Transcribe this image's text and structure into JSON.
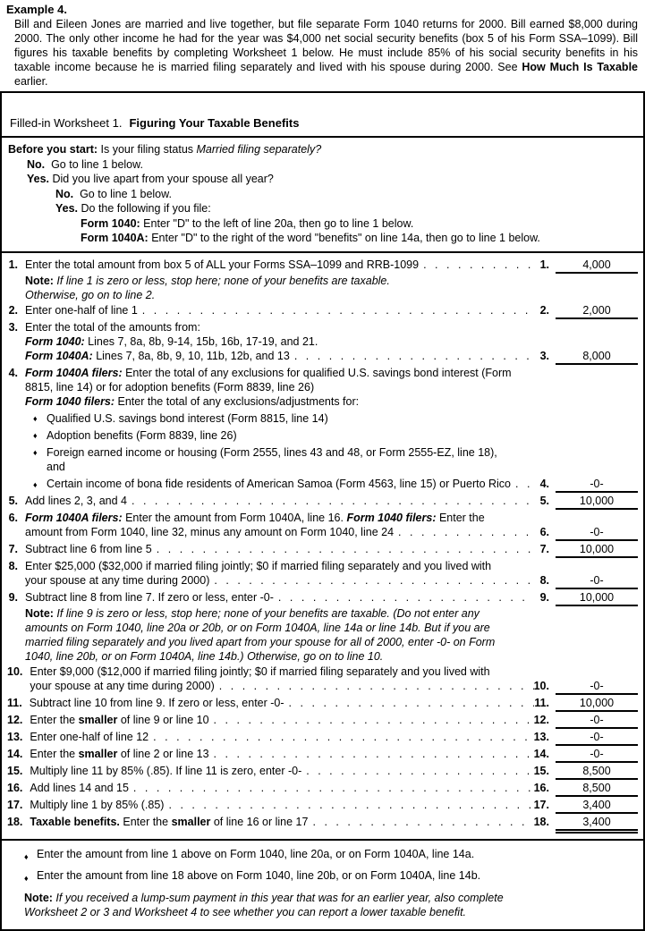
{
  "glyphs": {
    "bullet": "♦",
    "leader_unit": "."
  },
  "example": {
    "heading": "Example 4.",
    "body": [
      {
        "t": "Bill and Eileen Jones are married and live together, but file separate Form 1040 returns for 2000. Bill earned $8,000 during 2000. The only other income he had for the year was $4,000 net social security benefits (box 5 of his Form SSA–1099). Bill figures his taxable benefits by completing Worksheet 1 below. He must include 85% of his social security benefits in his taxable income because he is married filing separately and lived with his spouse during 2000. See "
      },
      {
        "t": "How Much Is Taxable",
        "b": true
      },
      {
        "t": " earlier."
      }
    ]
  },
  "worksheet": {
    "title_prefix": "Filled-in Worksheet 1.",
    "title_bold": "Figuring Your Taxable Benefits",
    "before": {
      "intro": [
        {
          "t": "Before you start:",
          "b": true
        },
        {
          "t": " Is your filing status "
        },
        {
          "t": "Married filing separately?",
          "i": true
        }
      ],
      "no1": [
        {
          "t": "No.",
          "b": true
        },
        {
          "t": "  Go to line 1 below."
        }
      ],
      "yes1": [
        {
          "t": "Yes.",
          "b": true
        },
        {
          "t": " Did you live apart from your spouse all year?"
        }
      ],
      "no2": [
        {
          "t": "No.",
          "b": true
        },
        {
          "t": "  Go to line 1 below."
        }
      ],
      "yes2": [
        {
          "t": "Yes.",
          "b": true
        },
        {
          "t": " Do the following if you file:"
        }
      ],
      "f1040": [
        {
          "t": "Form 1040:",
          "b": true
        },
        {
          "t": " Enter \"D\" to the left of line 20a, then go to line 1 below."
        }
      ],
      "f1040a": [
        {
          "t": "Form 1040A:",
          "b": true
        },
        {
          "t": " Enter \"D\" to the right of the word \"benefits\" on line 14a, then go to line 1 below."
        }
      ]
    },
    "rows": {
      "r1": {
        "num": "1.",
        "text": [
          {
            "t": "Enter the total amount from box 5 of ALL your Forms SSA–1099 and RRB-1099"
          }
        ],
        "amount": "4,000",
        "note1": [
          {
            "t": "Note:",
            "b": true
          },
          {
            "t": " If line 1 is zero or less, stop here; none of your benefits are taxable.",
            "i": true
          }
        ],
        "note2": [
          {
            "t": "Otherwise, go on to line 2.",
            "i": true
          }
        ]
      },
      "r2": {
        "num": "2.",
        "text": [
          {
            "t": "Enter one-half of line 1"
          }
        ],
        "amount": "2,000"
      },
      "r3": {
        "num": "3.",
        "line1": [
          {
            "t": "Enter the total of the amounts from:"
          }
        ],
        "line2": [
          {
            "t": "Form 1040:",
            "b": true,
            "i": true
          },
          {
            "t": " Lines 7, 8a, 8b, 9-14, 15b, 16b, 17-19, and 21."
          }
        ],
        "text": [
          {
            "t": "Form 1040A:",
            "b": true,
            "i": true
          },
          {
            "t": " Lines 7, 8a, 8b, 9, 10, 11b, 12b, and 13"
          }
        ],
        "amount": "8,000"
      },
      "r4": {
        "num": "4.",
        "line1": [
          {
            "t": "Form 1040A filers:",
            "b": true,
            "i": true
          },
          {
            "t": " Enter the total of any exclusions for qualified U.S. savings bond interest (Form 8815, line 14) or for adoption benefits (Form 8839, line 26)"
          }
        ],
        "line2": [
          {
            "t": "Form 1040 filers:",
            "b": true,
            "i": true
          },
          {
            "t": " Enter the total of any exclusions/adjustments for:"
          }
        ],
        "bullet1": [
          {
            "t": "Qualified U.S. savings bond interest (Form 8815, line 14)"
          }
        ],
        "bullet2": [
          {
            "t": "Adoption benefits (Form 8839, line 26)"
          }
        ],
        "bullet3": [
          {
            "t": "Foreign earned income or housing (Form 2555, lines 43 and 48, or Form 2555-EZ, line 18),"
          }
        ],
        "bullet3b": [
          {
            "t": "and"
          }
        ],
        "text": [
          {
            "t": "Certain income of bona fide residents of American Samoa (Form 4563, line 15) or Puerto Rico"
          }
        ],
        "amount": "-0-"
      },
      "r5": {
        "num": "5.",
        "text": [
          {
            "t": "Add lines 2, 3, and 4"
          }
        ],
        "amount": "10,000"
      },
      "r6": {
        "num": "6.",
        "line1": [
          {
            "t": "Form 1040A filers:",
            "b": true,
            "i": true
          },
          {
            "t": " Enter the amount from Form 1040A, line 16. "
          },
          {
            "t": "Form 1040 filers:",
            "b": true,
            "i": true
          },
          {
            "t": " Enter the"
          }
        ],
        "text": [
          {
            "t": "amount from Form 1040, line 32, minus any amount on Form 1040, line 24"
          }
        ],
        "amount": "-0-"
      },
      "r7": {
        "num": "7.",
        "text": [
          {
            "t": "Subtract line 6 from line 5"
          }
        ],
        "amount": "10,000"
      },
      "r8": {
        "num": "8.",
        "line1": [
          {
            "t": "Enter $25,000 ($32,000 if married filing jointly; $0 if married filing separately and you lived with"
          }
        ],
        "text": [
          {
            "t": "your spouse at any time during 2000)"
          }
        ],
        "amount": "-0-"
      },
      "r9": {
        "num": "9.",
        "text": [
          {
            "t": "Subtract line 8 from line 7. If zero or less, enter -0-"
          }
        ],
        "amount": "10,000",
        "note": [
          {
            "t": "Note:",
            "b": true
          },
          {
            "t": " If line 9 is zero or less, stop here; none of your benefits are taxable. (Do not enter any amounts on Form 1040, line 20a or 20b, or on Form 1040A, line 14a or line 14b. But if you are married filing separately and you lived apart from your spouse for all of 2000, enter -0- on Form 1040, line 20b, or on Form 1040A, line 14b.) Otherwise, go on to line 10.",
            "i": true
          }
        ]
      },
      "r10": {
        "num": "10.",
        "line1": [
          {
            "t": "Enter $9,000 ($12,000 if married filing jointly; $0 if married filing separately and you lived with"
          }
        ],
        "text": [
          {
            "t": "your spouse at any time during 2000)"
          }
        ],
        "amount": "-0-"
      },
      "r11": {
        "num": "11.",
        "text": [
          {
            "t": "Subtract line 10 from line 9. If zero or less, enter -0-"
          }
        ],
        "amount": "10,000"
      },
      "r12": {
        "num": "12.",
        "text": [
          {
            "t": "Enter the "
          },
          {
            "t": "smaller",
            "b": true
          },
          {
            "t": " of line 9 or line 10"
          }
        ],
        "amount": "-0-"
      },
      "r13": {
        "num": "13.",
        "text": [
          {
            "t": "Enter one-half of line 12"
          }
        ],
        "amount": "-0-"
      },
      "r14": {
        "num": "14.",
        "text": [
          {
            "t": "Enter the "
          },
          {
            "t": "smaller",
            "b": true
          },
          {
            "t": " of line 2 or line 13"
          }
        ],
        "amount": "-0-"
      },
      "r15": {
        "num": "15.",
        "text": [
          {
            "t": "Multiply line 11 by 85% (.85). If line 11 is zero, enter -0-"
          }
        ],
        "amount": "8,500"
      },
      "r16": {
        "num": "16.",
        "text": [
          {
            "t": "Add lines 14 and 15"
          }
        ],
        "amount": "8,500"
      },
      "r17": {
        "num": "17.",
        "text": [
          {
            "t": "Multiply line 1 by 85% (.85)"
          }
        ],
        "amount": "3,400"
      },
      "r18": {
        "num": "18.",
        "text": [
          {
            "t": "Taxable benefits.",
            "b": true
          },
          {
            "t": " Enter the "
          },
          {
            "t": "smaller",
            "b": true
          },
          {
            "t": " of line 16 or line 17"
          }
        ],
        "amount": "3,400"
      }
    },
    "footer": {
      "bullet1": "Enter the amount from line 1 above on Form 1040, line 20a, or on Form 1040A, line 14a.",
      "bullet2": "Enter the amount from line 18 above on Form 1040, line 20b, or on Form 1040A, line 14b.",
      "note": [
        {
          "t": "Note:",
          "b": true
        },
        {
          "t": " If you received a lump-sum payment in this year that was for an earlier year, also complete Worksheet 2 or 3 and Worksheet 4 to see whether you can report a lower taxable benefit.",
          "i": true
        }
      ]
    }
  }
}
